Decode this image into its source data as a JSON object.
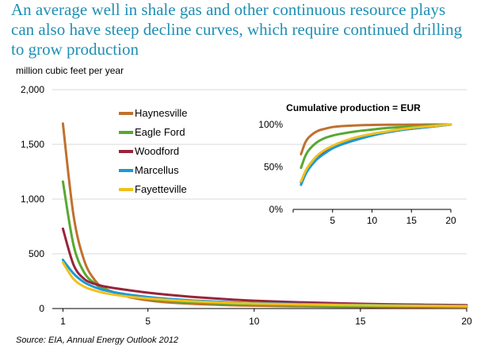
{
  "headline": {
    "line1": "An average well in shale gas and other continuous resource plays",
    "line2": "can also have steep decline curves, which require continued drilling",
    "line3": "to grow production"
  },
  "source": "Source:  EIA, Annual Energy Outlook 2012",
  "chart_data": [
    {
      "type": "line",
      "title": "",
      "ylabel": "million cubic feet per year",
      "xlabel": "",
      "xlim": [
        0.5,
        20
      ],
      "ylim": [
        0,
        2000
      ],
      "x_ticks": [
        1,
        5,
        10,
        15,
        20
      ],
      "y_ticks": [
        0,
        500,
        1000,
        1500,
        2000
      ],
      "y_tick_labels": [
        "0",
        "500",
        "1,000",
        "1,500",
        "2,000"
      ],
      "grid": "horizontal",
      "legend_position": "top-left",
      "x": [
        1,
        1.5,
        2,
        2.5,
        3,
        4,
        5,
        6,
        7,
        8,
        9,
        10,
        12,
        14,
        16,
        18,
        20
      ],
      "series": [
        {
          "name": "Haynesville",
          "color": "#c0712e",
          "values": [
            1690,
            850,
            440,
            260,
            180,
            110,
            75,
            55,
            44,
            36,
            30,
            26,
            20,
            17,
            14,
            12,
            11
          ]
        },
        {
          "name": "Eagle Ford",
          "color": "#58a832",
          "values": [
            1160,
            580,
            330,
            230,
            175,
            120,
            90,
            70,
            58,
            49,
            42,
            37,
            30,
            25,
            21,
            18,
            16
          ]
        },
        {
          "name": "Woodford",
          "color": "#98243a",
          "values": [
            730,
            400,
            270,
            225,
            200,
            170,
            145,
            125,
            108,
            94,
            82,
            72,
            58,
            48,
            40,
            35,
            31
          ]
        },
        {
          "name": "Marcellus",
          "color": "#1a9ad6",
          "values": [
            445,
            320,
            240,
            195,
            165,
            130,
            105,
            88,
            75,
            65,
            57,
            50,
            42,
            36,
            31,
            27,
            24
          ]
        },
        {
          "name": "Fayetteville",
          "color": "#f2c01e",
          "values": [
            420,
            270,
            200,
            165,
            140,
            110,
            92,
            78,
            67,
            58,
            51,
            46,
            38,
            32,
            28,
            25,
            22
          ]
        }
      ]
    },
    {
      "type": "line",
      "title": "Cumulative production = EUR",
      "xlabel": "",
      "ylabel": "",
      "xlim": [
        0,
        20
      ],
      "ylim": [
        0,
        100
      ],
      "x_ticks": [
        0,
        5,
        10,
        15,
        20
      ],
      "y_ticks": [
        0,
        50,
        100
      ],
      "y_tick_labels": [
        "0%",
        "50%",
        "100%"
      ],
      "grid": "none",
      "x": [
        1,
        1.5,
        2,
        3,
        4,
        5,
        6,
        8,
        10,
        12,
        14,
        16,
        18,
        20
      ],
      "series": [
        {
          "color": "#c0712e",
          "values": [
            65,
            78,
            85,
            92,
            95,
            97,
            98,
            99,
            99.5,
            99.7,
            99.8,
            99.9,
            100,
            100
          ]
        },
        {
          "color": "#58a832",
          "values": [
            49,
            62,
            70,
            79,
            84,
            87,
            89,
            92,
            94,
            96,
            97,
            98,
            99,
            100
          ]
        },
        {
          "color": "#98243a",
          "values": [
            32,
            43,
            51,
            62,
            69,
            74,
            78,
            84,
            88,
            91,
            94,
            96,
            98,
            100
          ]
        },
        {
          "color": "#1a9ad6",
          "values": [
            29,
            40,
            48,
            59,
            66,
            72,
            76,
            82,
            87,
            91,
            94,
            96,
            98,
            100
          ]
        },
        {
          "color": "#f2c01e",
          "values": [
            33,
            44,
            52,
            63,
            70,
            75,
            79,
            85,
            89,
            92,
            95,
            97,
            98.5,
            100
          ]
        }
      ]
    }
  ]
}
